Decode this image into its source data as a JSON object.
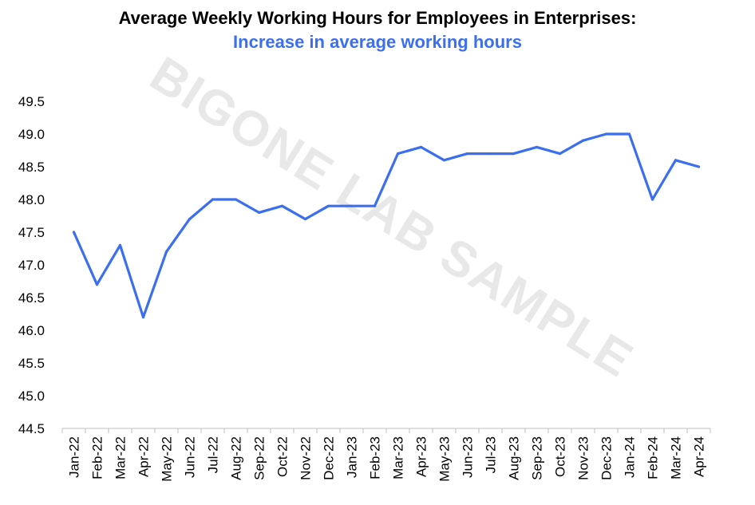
{
  "chart_data": {
    "type": "line",
    "title": "Average Weekly Working Hours for Employees in Enterprises:",
    "subtitle": "Increase in average working hours",
    "watermark": "BIGONE LAB SAMPLE",
    "xlabel": "",
    "ylabel": "",
    "ylim": [
      44.5,
      49.5
    ],
    "yticks": [
      "44.5",
      "45.0",
      "45.5",
      "46.0",
      "46.5",
      "47.0",
      "47.5",
      "48.0",
      "48.5",
      "49.0",
      "49.5"
    ],
    "grid": false,
    "line_color": "#3b6ff0",
    "subtitle_color": "#3b6ff0",
    "categories": [
      "Jan-22",
      "Feb-22",
      "Mar-22",
      "Apr-22",
      "May-22",
      "Jun-22",
      "Jul-22",
      "Aug-22",
      "Sep-22",
      "Oct-22",
      "Nov-22",
      "Dec-22",
      "Jan-23",
      "Feb-23",
      "Mar-23",
      "Apr-23",
      "May-23",
      "Jun-23",
      "Jul-23",
      "Aug-23",
      "Sep-23",
      "Oct-23",
      "Nov-23",
      "Dec-23",
      "Jan-24",
      "Feb-24",
      "Mar-24",
      "Apr-24"
    ],
    "series": [
      {
        "values": [
          47.5,
          46.7,
          47.3,
          46.2,
          47.2,
          47.7,
          48.0,
          48.0,
          47.8,
          47.9,
          47.7,
          47.9,
          47.9,
          47.9,
          48.7,
          48.8,
          48.6,
          48.7,
          48.7,
          48.7,
          48.8,
          48.7,
          48.9,
          49.0,
          49.0,
          48.0,
          48.6,
          48.5
        ]
      }
    ]
  }
}
